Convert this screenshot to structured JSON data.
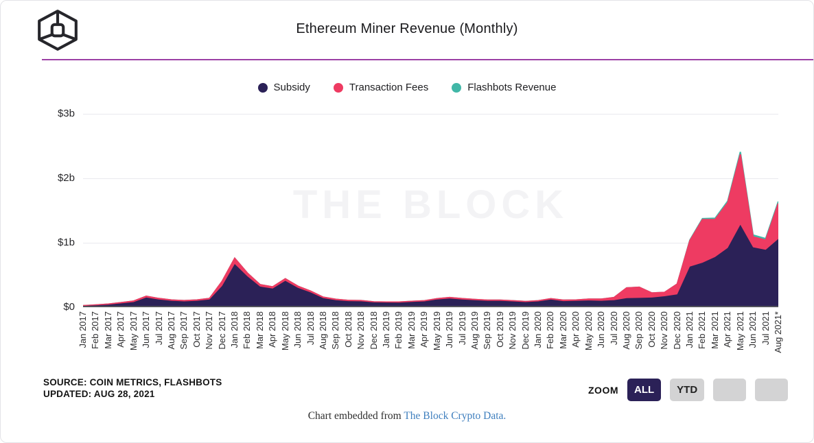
{
  "theme": {
    "divider_purple": "#9c3fa5",
    "navy": "#2b2157",
    "pink": "#ee3b62",
    "teal": "#41b7a7",
    "link_blue": "#3f7fbe",
    "grid_gray": "#e9e9ee",
    "baseline_gray": "#53535c",
    "watermark_gray": "#f3f3f5"
  },
  "header": {
    "title": "Ethereum Miner Revenue (Monthly)",
    "logo": "the-block-cube-logo"
  },
  "legend": [
    {
      "label": "Subsidy",
      "color": "#2b2157"
    },
    {
      "label": "Transaction Fees",
      "color": "#ee3b62"
    },
    {
      "label": "Flashbots Revenue",
      "color": "#41b7a7"
    }
  ],
  "watermark": "THE BLOCK",
  "chart_data": {
    "type": "area",
    "stacked": true,
    "title": "Ethereum Miner Revenue (Monthly)",
    "unit": "USD billions",
    "ylim": [
      0,
      3
    ],
    "grid": true,
    "legend_position": "top",
    "yticks": [
      {
        "label": "$0",
        "value": 0
      },
      {
        "label": "$1b",
        "value": 1
      },
      {
        "label": "$2b",
        "value": 2
      },
      {
        "label": "$3b",
        "value": 3
      }
    ],
    "x": [
      "Jan 2017",
      "Feb 2017",
      "Mar 2017",
      "Apr 2017",
      "May 2017",
      "Jun 2017",
      "Jul 2017",
      "Aug 2017",
      "Sep 2017",
      "Oct 2017",
      "Nov 2017",
      "Dec 2017",
      "Jan 2018",
      "Feb 2018",
      "Mar 2018",
      "Apr 2018",
      "May 2018",
      "Jun 2018",
      "Jul 2018",
      "Aug 2018",
      "Sep 2018",
      "Oct 2018",
      "Nov 2018",
      "Dec 2018",
      "Jan 2019",
      "Feb 2019",
      "Mar 2019",
      "Apr 2019",
      "May 2019",
      "Jun 2019",
      "Jul 2019",
      "Aug 2019",
      "Sep 2019",
      "Oct 2019",
      "Nov 2019",
      "Dec 2019",
      "Jan 2020",
      "Feb 2020",
      "Mar 2020",
      "Apr 2020",
      "May 2020",
      "Jun 2020",
      "Jul 2020",
      "Aug 2020",
      "Sep 2020",
      "Oct 2020",
      "Nov 2020",
      "Dec 2020",
      "Jan 2021",
      "Feb 2021",
      "Mar 2021",
      "Apr 2021",
      "May 2021",
      "Jun 2021",
      "Jul 2021",
      "Aug 2021*"
    ],
    "series": [
      {
        "name": "Subsidy",
        "color": "#2b2157",
        "values": [
          0.02,
          0.03,
          0.04,
          0.06,
          0.08,
          0.15,
          0.12,
          0.1,
          0.09,
          0.1,
          0.12,
          0.33,
          0.67,
          0.48,
          0.32,
          0.29,
          0.41,
          0.3,
          0.23,
          0.14,
          0.11,
          0.095,
          0.092,
          0.075,
          0.073,
          0.072,
          0.082,
          0.09,
          0.12,
          0.135,
          0.12,
          0.11,
          0.1,
          0.1,
          0.09,
          0.08,
          0.09,
          0.12,
          0.095,
          0.1,
          0.105,
          0.1,
          0.11,
          0.14,
          0.145,
          0.15,
          0.17,
          0.2,
          0.63,
          0.69,
          0.78,
          0.92,
          1.28,
          0.93,
          0.89,
          1.06
        ]
      },
      {
        "name": "Transaction Fees",
        "color": "#ee3b62",
        "values": [
          0.003,
          0.004,
          0.008,
          0.01,
          0.015,
          0.02,
          0.015,
          0.012,
          0.012,
          0.012,
          0.015,
          0.07,
          0.09,
          0.05,
          0.03,
          0.025,
          0.03,
          0.025,
          0.02,
          0.015,
          0.012,
          0.01,
          0.01,
          0.008,
          0.007,
          0.008,
          0.008,
          0.01,
          0.012,
          0.015,
          0.013,
          0.01,
          0.01,
          0.01,
          0.01,
          0.008,
          0.01,
          0.012,
          0.015,
          0.012,
          0.02,
          0.025,
          0.04,
          0.16,
          0.165,
          0.07,
          0.06,
          0.16,
          0.4,
          0.67,
          0.58,
          0.7,
          1.09,
          0.16,
          0.15,
          0.55
        ]
      },
      {
        "name": "Flashbots Revenue",
        "color": "#41b7a7",
        "values": [
          0,
          0,
          0,
          0,
          0,
          0,
          0,
          0,
          0,
          0,
          0,
          0,
          0,
          0,
          0,
          0,
          0,
          0,
          0,
          0,
          0,
          0,
          0,
          0,
          0,
          0,
          0,
          0,
          0,
          0,
          0,
          0,
          0,
          0,
          0,
          0,
          0,
          0,
          0,
          0,
          0,
          0,
          0,
          0,
          0,
          0,
          0,
          0,
          0.01,
          0.015,
          0.02,
          0.025,
          0.04,
          0.03,
          0.025,
          0.03
        ]
      }
    ]
  },
  "footer": {
    "source_line1": "SOURCE: COIN METRICS, FLASHBOTS",
    "source_line2": "UPDATED: AUG 28, 2021",
    "zoom_label": "ZOOM",
    "zoom_buttons": [
      {
        "label": "ALL",
        "active": true
      },
      {
        "label": "YTD",
        "active": false
      },
      {
        "label": "",
        "active": false
      },
      {
        "label": "",
        "active": false
      }
    ],
    "embed_text": "Chart embedded from ",
    "embed_link": "The Block Crypto Data."
  }
}
